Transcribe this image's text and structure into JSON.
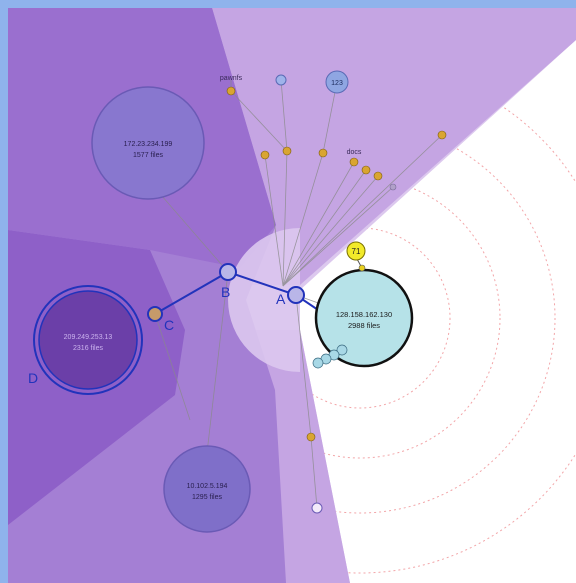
{
  "colors": {
    "frame": "#8fb3ec",
    "wedge_dark": "#8e60c8",
    "wedge_mid": "#a47fd4",
    "wedge_light": "#c5a5e3",
    "wedge_lightest": "#dcc8ee",
    "path": "#2233bb",
    "selected_node": "#b6e2e8",
    "leaf": "#d9a531",
    "ring": "#f2a5a8"
  },
  "nodes": {
    "host_a": {
      "ip": "172.23.234.199",
      "files": "1577 files"
    },
    "host_b": {
      "ip": "209.249.253.13",
      "files": "2316 files"
    },
    "host_c": {
      "ip": "10.102.5.194",
      "files": "1295 files"
    },
    "host_selected": {
      "ip": "128.158.162.130",
      "files": "2988 files"
    },
    "small_node": {
      "label": "123"
    }
  },
  "path_labels": {
    "a": "A",
    "b": "B",
    "c": "C",
    "d": "D"
  },
  "badge": {
    "label": "71"
  },
  "leaf_labels": {
    "top": "pawnfs",
    "right": "docs"
  }
}
